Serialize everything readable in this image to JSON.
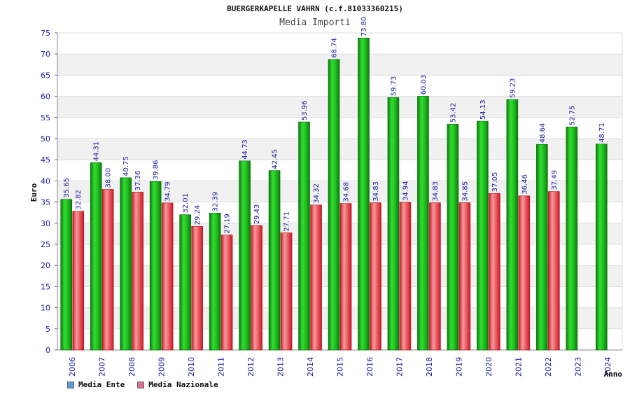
{
  "chart_data": {
    "type": "bar",
    "title": "BUERGERKAPELLE VAHRN (c.f.81033360215)",
    "subtitle": "Media Importi",
    "ylabel": "Euro",
    "xlabel": "Anno",
    "ylim": [
      0,
      75
    ],
    "yticks": [
      0,
      5,
      10,
      15,
      20,
      25,
      30,
      35,
      40,
      45,
      50,
      55,
      60,
      65,
      70,
      75
    ],
    "grid": true,
    "legend_position": "bottom-left",
    "categories": [
      "2006",
      "2007",
      "2008",
      "2009",
      "2010",
      "2011",
      "2012",
      "2013",
      "2014",
      "2015",
      "2016",
      "2017",
      "2018",
      "2019",
      "2020",
      "2021",
      "2022",
      "2023",
      "2024"
    ],
    "series": [
      {
        "name": "Media Ente",
        "color": "#1fbf1f",
        "legend_color": "#5b9bd5",
        "values": [
          35.65,
          44.31,
          40.75,
          39.86,
          32.01,
          32.39,
          44.73,
          42.45,
          53.96,
          68.74,
          73.8,
          59.73,
          60.03,
          53.42,
          54.13,
          59.23,
          48.64,
          52.75,
          48.71
        ],
        "labels": [
          "35.65",
          "44.31",
          "40.75",
          "39.86",
          "32.01",
          "32.39",
          "44.73",
          "42.45",
          "53.96",
          "68.74",
          "73.80",
          "59.73",
          "60.03",
          "53.42",
          "54.13",
          "59.23",
          "48.64",
          "52.75",
          "48.71"
        ]
      },
      {
        "name": "Media Nazionale",
        "color": "#e8424a",
        "legend_color": "#e06a9a",
        "values": [
          32.82,
          38.0,
          37.36,
          34.79,
          29.24,
          27.19,
          29.43,
          27.71,
          34.32,
          34.68,
          34.83,
          34.94,
          34.83,
          34.85,
          37.05,
          36.46,
          37.49,
          null,
          null
        ],
        "labels": [
          "32.82",
          "38.00",
          "37.36",
          "34.79",
          "29.24",
          "27.19",
          "29.43",
          "27.71",
          "34.32",
          "34.68",
          "34.83",
          "34.94",
          "34.83",
          "34.85",
          "37.05",
          "36.46",
          "37.49",
          "",
          ""
        ]
      }
    ]
  }
}
